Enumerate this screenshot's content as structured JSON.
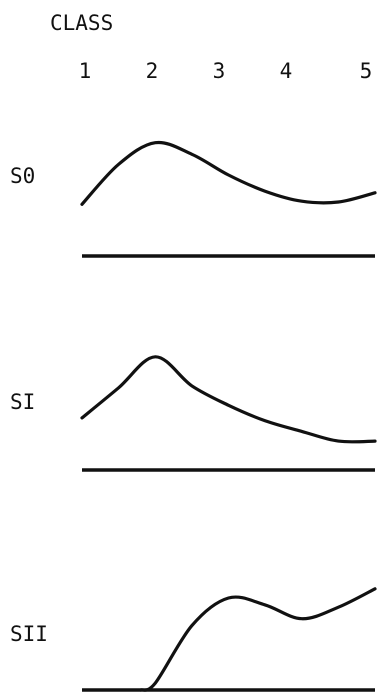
{
  "chart_data": {
    "type": "line",
    "title": "CLASS",
    "x": [
      1,
      2,
      3,
      4,
      5
    ],
    "xlabel": "CLASS",
    "ylabel": "",
    "grid": false,
    "series": [
      {
        "name": "S0",
        "x": [
          1,
          1.5,
          2,
          2.5,
          3,
          3.5,
          4,
          4.5,
          5
        ],
        "values": [
          0.1,
          0.62,
          0.9,
          0.75,
          0.48,
          0.27,
          0.14,
          0.13,
          0.25
        ]
      },
      {
        "name": "SI",
        "x": [
          1,
          1.5,
          2,
          2.5,
          3,
          3.5,
          4,
          4.5,
          5
        ],
        "values": [
          0.29,
          0.6,
          0.92,
          0.62,
          0.42,
          0.26,
          0.15,
          0.05,
          0.05
        ]
      },
      {
        "name": "SII",
        "x": [
          1.8,
          2,
          2.5,
          3,
          3.5,
          4,
          4.5,
          5
        ],
        "values": [
          0.0,
          0.06,
          0.56,
          0.8,
          0.74,
          0.62,
          0.72,
          0.88
        ]
      }
    ]
  }
}
